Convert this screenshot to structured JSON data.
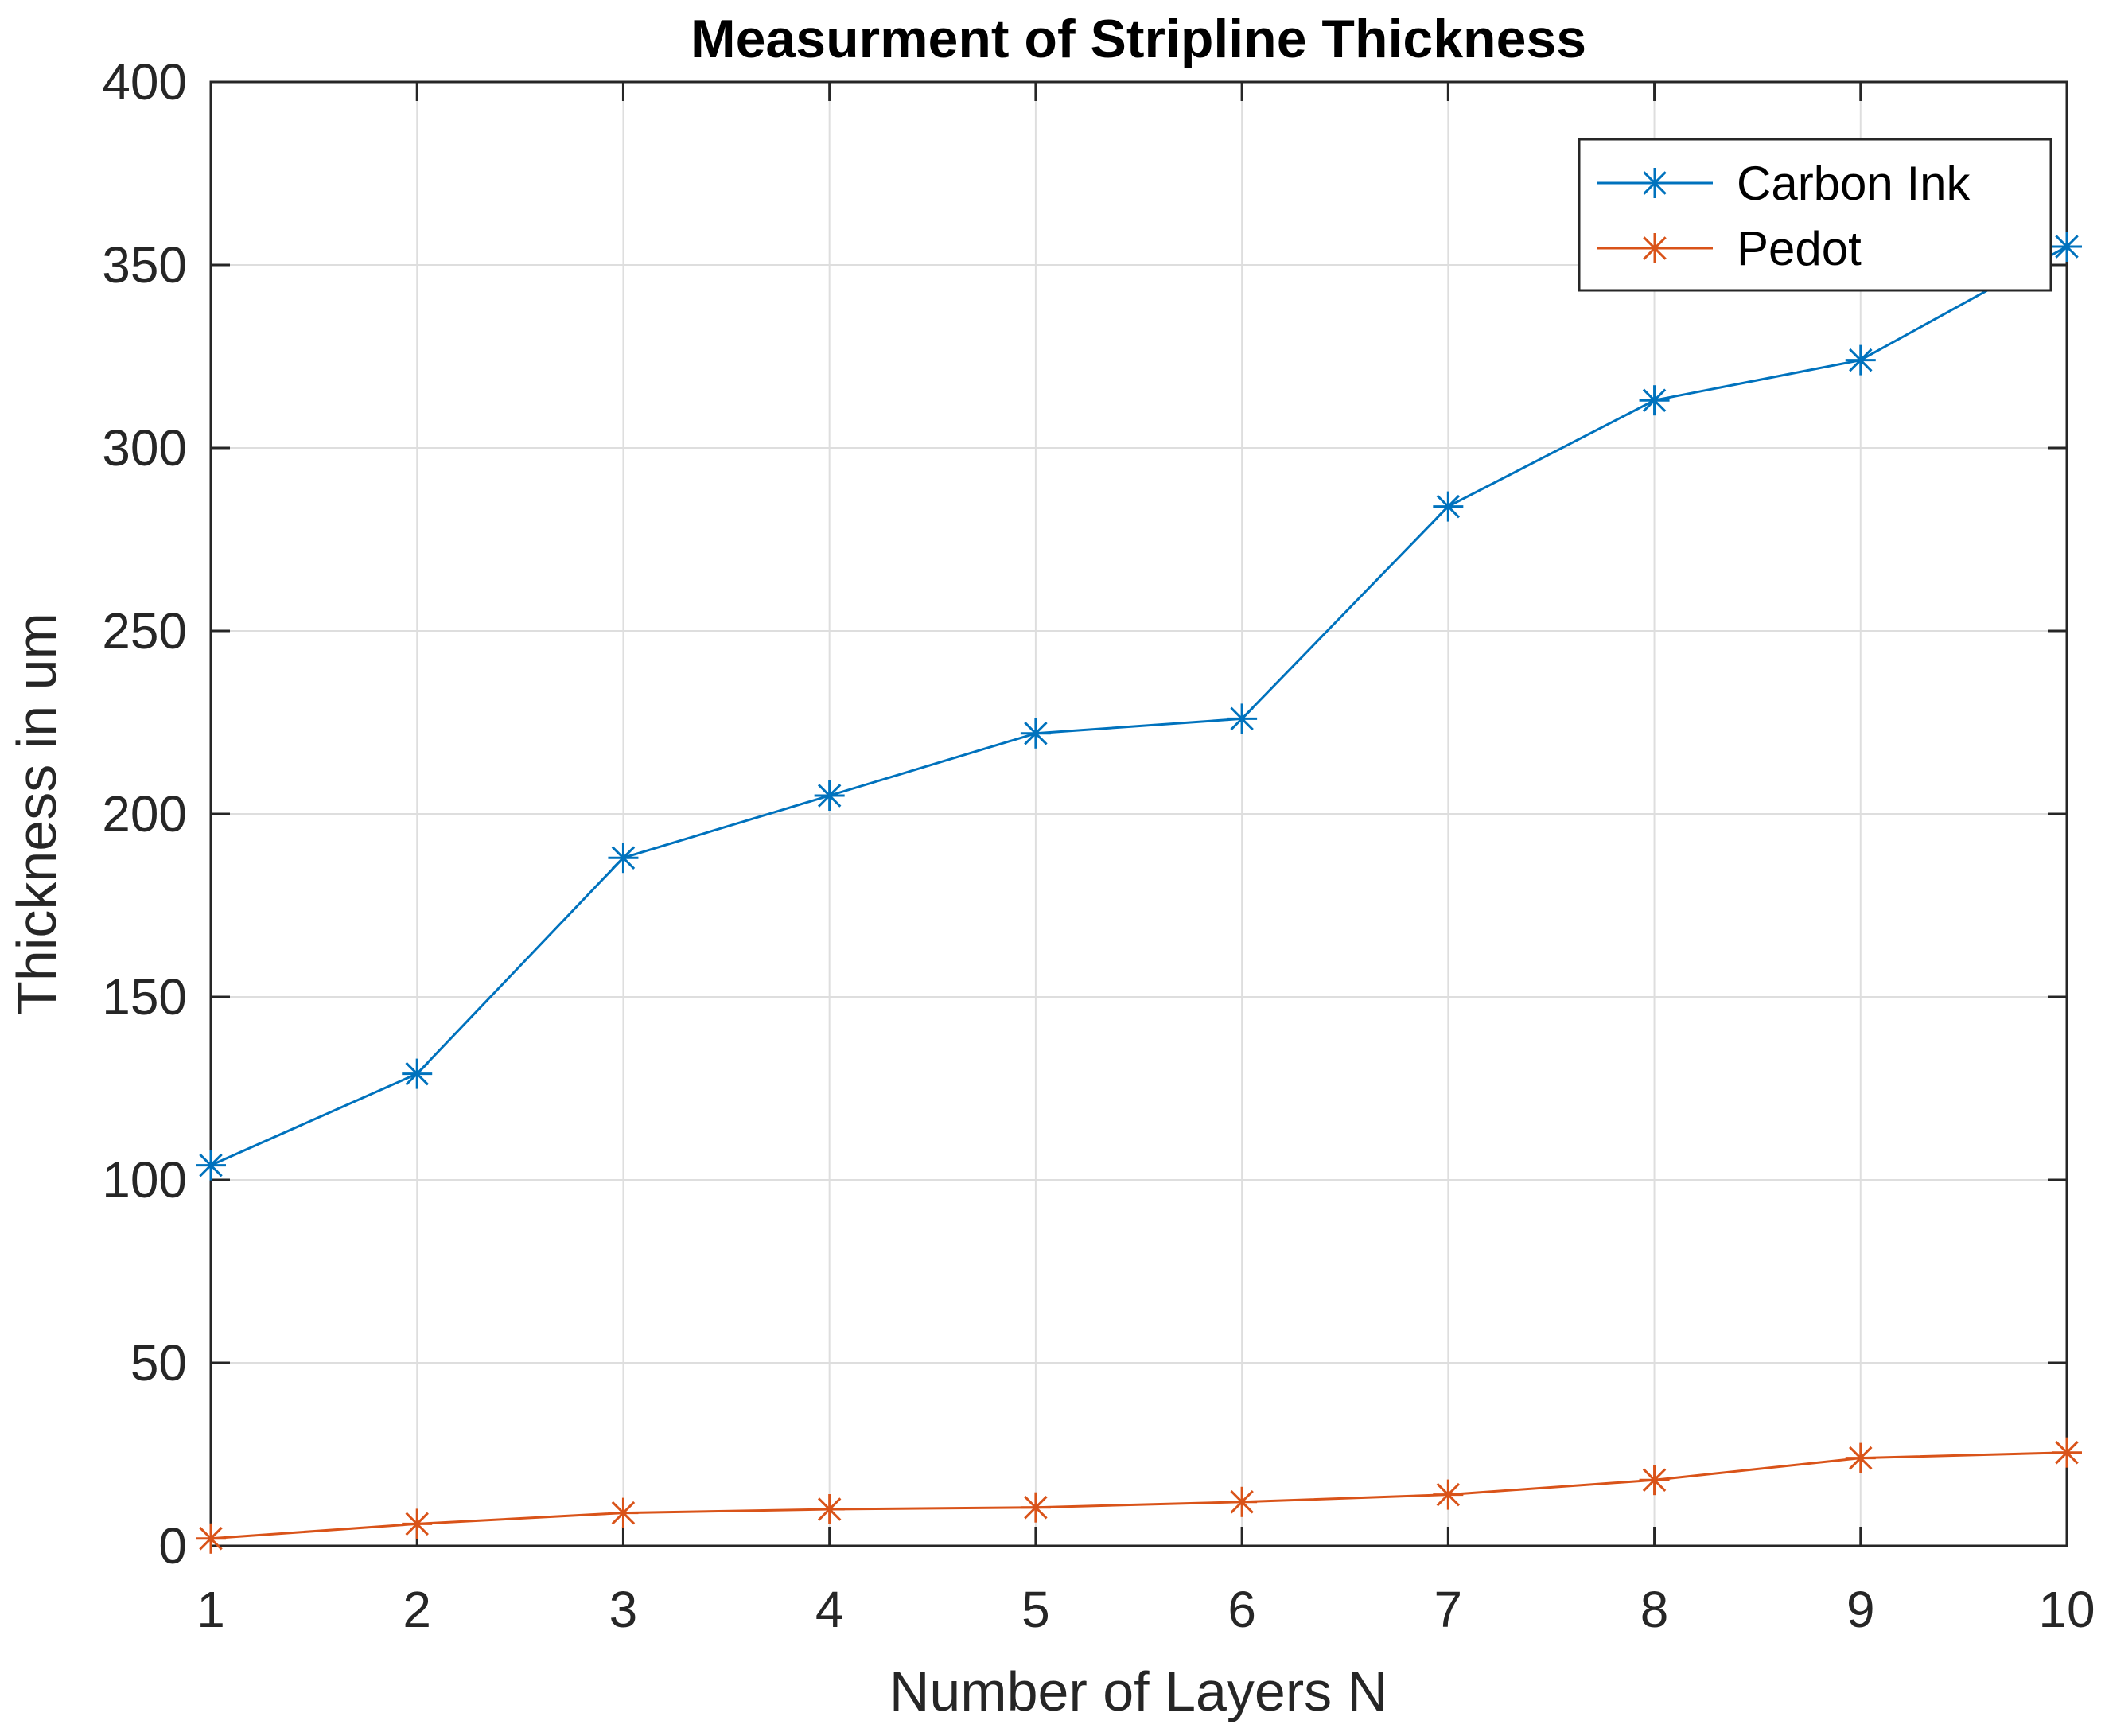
{
  "chart_data": {
    "type": "line",
    "title": "Measurment of Stripline Thickness",
    "xlabel": "Number of Layers N",
    "ylabel": "Thickness in um",
    "xlim": [
      1,
      10
    ],
    "ylim": [
      0,
      400
    ],
    "xticks": [
      1,
      2,
      3,
      4,
      5,
      6,
      7,
      8,
      9,
      10
    ],
    "yticks": [
      0,
      50,
      100,
      150,
      200,
      250,
      300,
      350,
      400
    ],
    "grid": true,
    "legend_position": "top-right",
    "x": [
      1,
      2,
      3,
      4,
      5,
      6,
      7,
      8,
      9,
      10
    ],
    "series": [
      {
        "name": "Carbon Ink",
        "color": "#0072BD",
        "marker": "asterisk",
        "values": [
          104,
          129,
          188,
          205,
          222,
          226,
          284,
          313,
          324,
          355
        ]
      },
      {
        "name": "Pedot",
        "color": "#D95319",
        "marker": "asterisk",
        "values": [
          2,
          6,
          9,
          10,
          10.5,
          12,
          14,
          18,
          24,
          25.5
        ]
      }
    ]
  }
}
